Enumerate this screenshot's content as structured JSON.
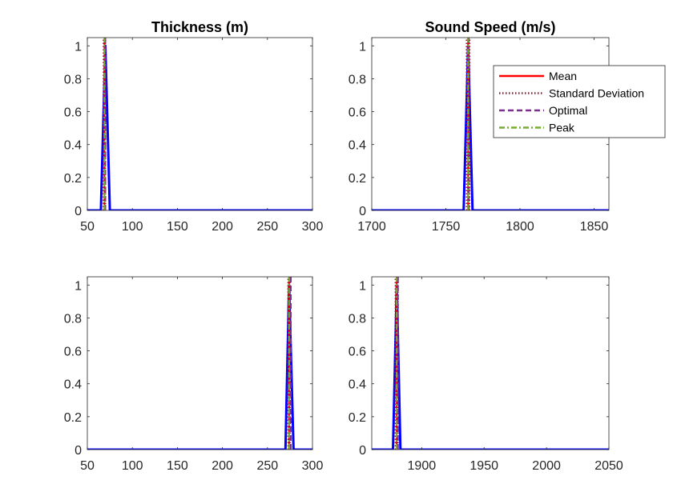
{
  "chart_data": [
    {
      "type": "line",
      "title": "Thickness (m)",
      "xlim": [
        50,
        300
      ],
      "ylim": [
        0,
        1.05
      ],
      "xticks": [
        50,
        100,
        150,
        200,
        250,
        300
      ],
      "yticks": [
        0,
        0.2,
        0.4,
        0.6,
        0.8,
        1
      ],
      "ytick_labels": [
        "0",
        "0.2",
        "0.4",
        "0.6",
        "0.8",
        "1"
      ],
      "distribution": {
        "x": [
          50,
          65,
          70,
          75,
          300
        ],
        "y": [
          0,
          0,
          1,
          0,
          0
        ],
        "color": "#0000ff"
      },
      "markers": {
        "mean": 69,
        "std": [
          68,
          70
        ],
        "optimal": 70,
        "peak": 69
      }
    },
    {
      "type": "line",
      "title": "Sound Speed (m/s)",
      "xlim": [
        1700,
        1860
      ],
      "ylim": [
        0,
        1.05
      ],
      "xticks": [
        1700,
        1750,
        1800,
        1850
      ],
      "yticks": [
        0,
        0.2,
        0.4,
        0.6,
        0.8,
        1
      ],
      "ytick_labels": [
        "0",
        "0.2",
        "0.4",
        "0.6",
        "0.8",
        "1"
      ],
      "distribution": {
        "x": [
          1700,
          1762,
          1765,
          1768,
          1860
        ],
        "y": [
          0,
          0,
          1,
          0,
          0
        ],
        "color": "#0000ff"
      },
      "markers": {
        "mean": 1765,
        "std": [
          1764,
          1766
        ],
        "optimal": 1765.5,
        "peak": 1765
      },
      "legend": {
        "placement": "top-right",
        "entries": [
          {
            "label": "Mean",
            "color": "#ff0000",
            "style": "solid"
          },
          {
            "label": "Standard Deviation",
            "color": "#a2142f",
            "style": "dotted"
          },
          {
            "label": "Optimal",
            "color": "#7e2f8e",
            "style": "dashed"
          },
          {
            "label": "Peak",
            "color": "#77ac30",
            "style": "dashdot"
          }
        ]
      }
    },
    {
      "type": "line",
      "title": "",
      "xlim": [
        50,
        300
      ],
      "ylim": [
        0,
        1.05
      ],
      "xticks": [
        50,
        100,
        150,
        200,
        250,
        300
      ],
      "yticks": [
        0,
        0.2,
        0.4,
        0.6,
        0.8,
        1
      ],
      "ytick_labels": [
        "0",
        "0.2",
        "0.4",
        "0.6",
        "0.8",
        "1"
      ],
      "distribution": {
        "x": [
          50,
          270,
          274,
          279,
          300
        ],
        "y": [
          0,
          0,
          1,
          0,
          0
        ],
        "color": "#0000ff"
      },
      "markers": {
        "mean": 274,
        "std": [
          273,
          275
        ],
        "optimal": 276,
        "peak": 274
      }
    },
    {
      "type": "line",
      "title": "",
      "xlim": [
        1860,
        2050
      ],
      "ylim": [
        0,
        1.05
      ],
      "xticks": [
        1900,
        1950,
        2000,
        2050
      ],
      "yticks": [
        0,
        0.2,
        0.4,
        0.6,
        0.8,
        1
      ],
      "ytick_labels": [
        "0",
        "0.2",
        "0.4",
        "0.6",
        "0.8",
        "1"
      ],
      "distribution": {
        "x": [
          1860,
          1877,
          1880,
          1883,
          2050
        ],
        "y": [
          0,
          0,
          1,
          0,
          0
        ],
        "color": "#0000ff"
      },
      "markers": {
        "mean": 1880,
        "std": [
          1879,
          1881
        ],
        "optimal": 1881,
        "peak": 1880
      }
    }
  ],
  "colors": {
    "mean": "#ff0000",
    "std": "#a2142f",
    "optimal": "#7e2f8e",
    "peak": "#77ac30",
    "distribution": "#0000ff"
  }
}
